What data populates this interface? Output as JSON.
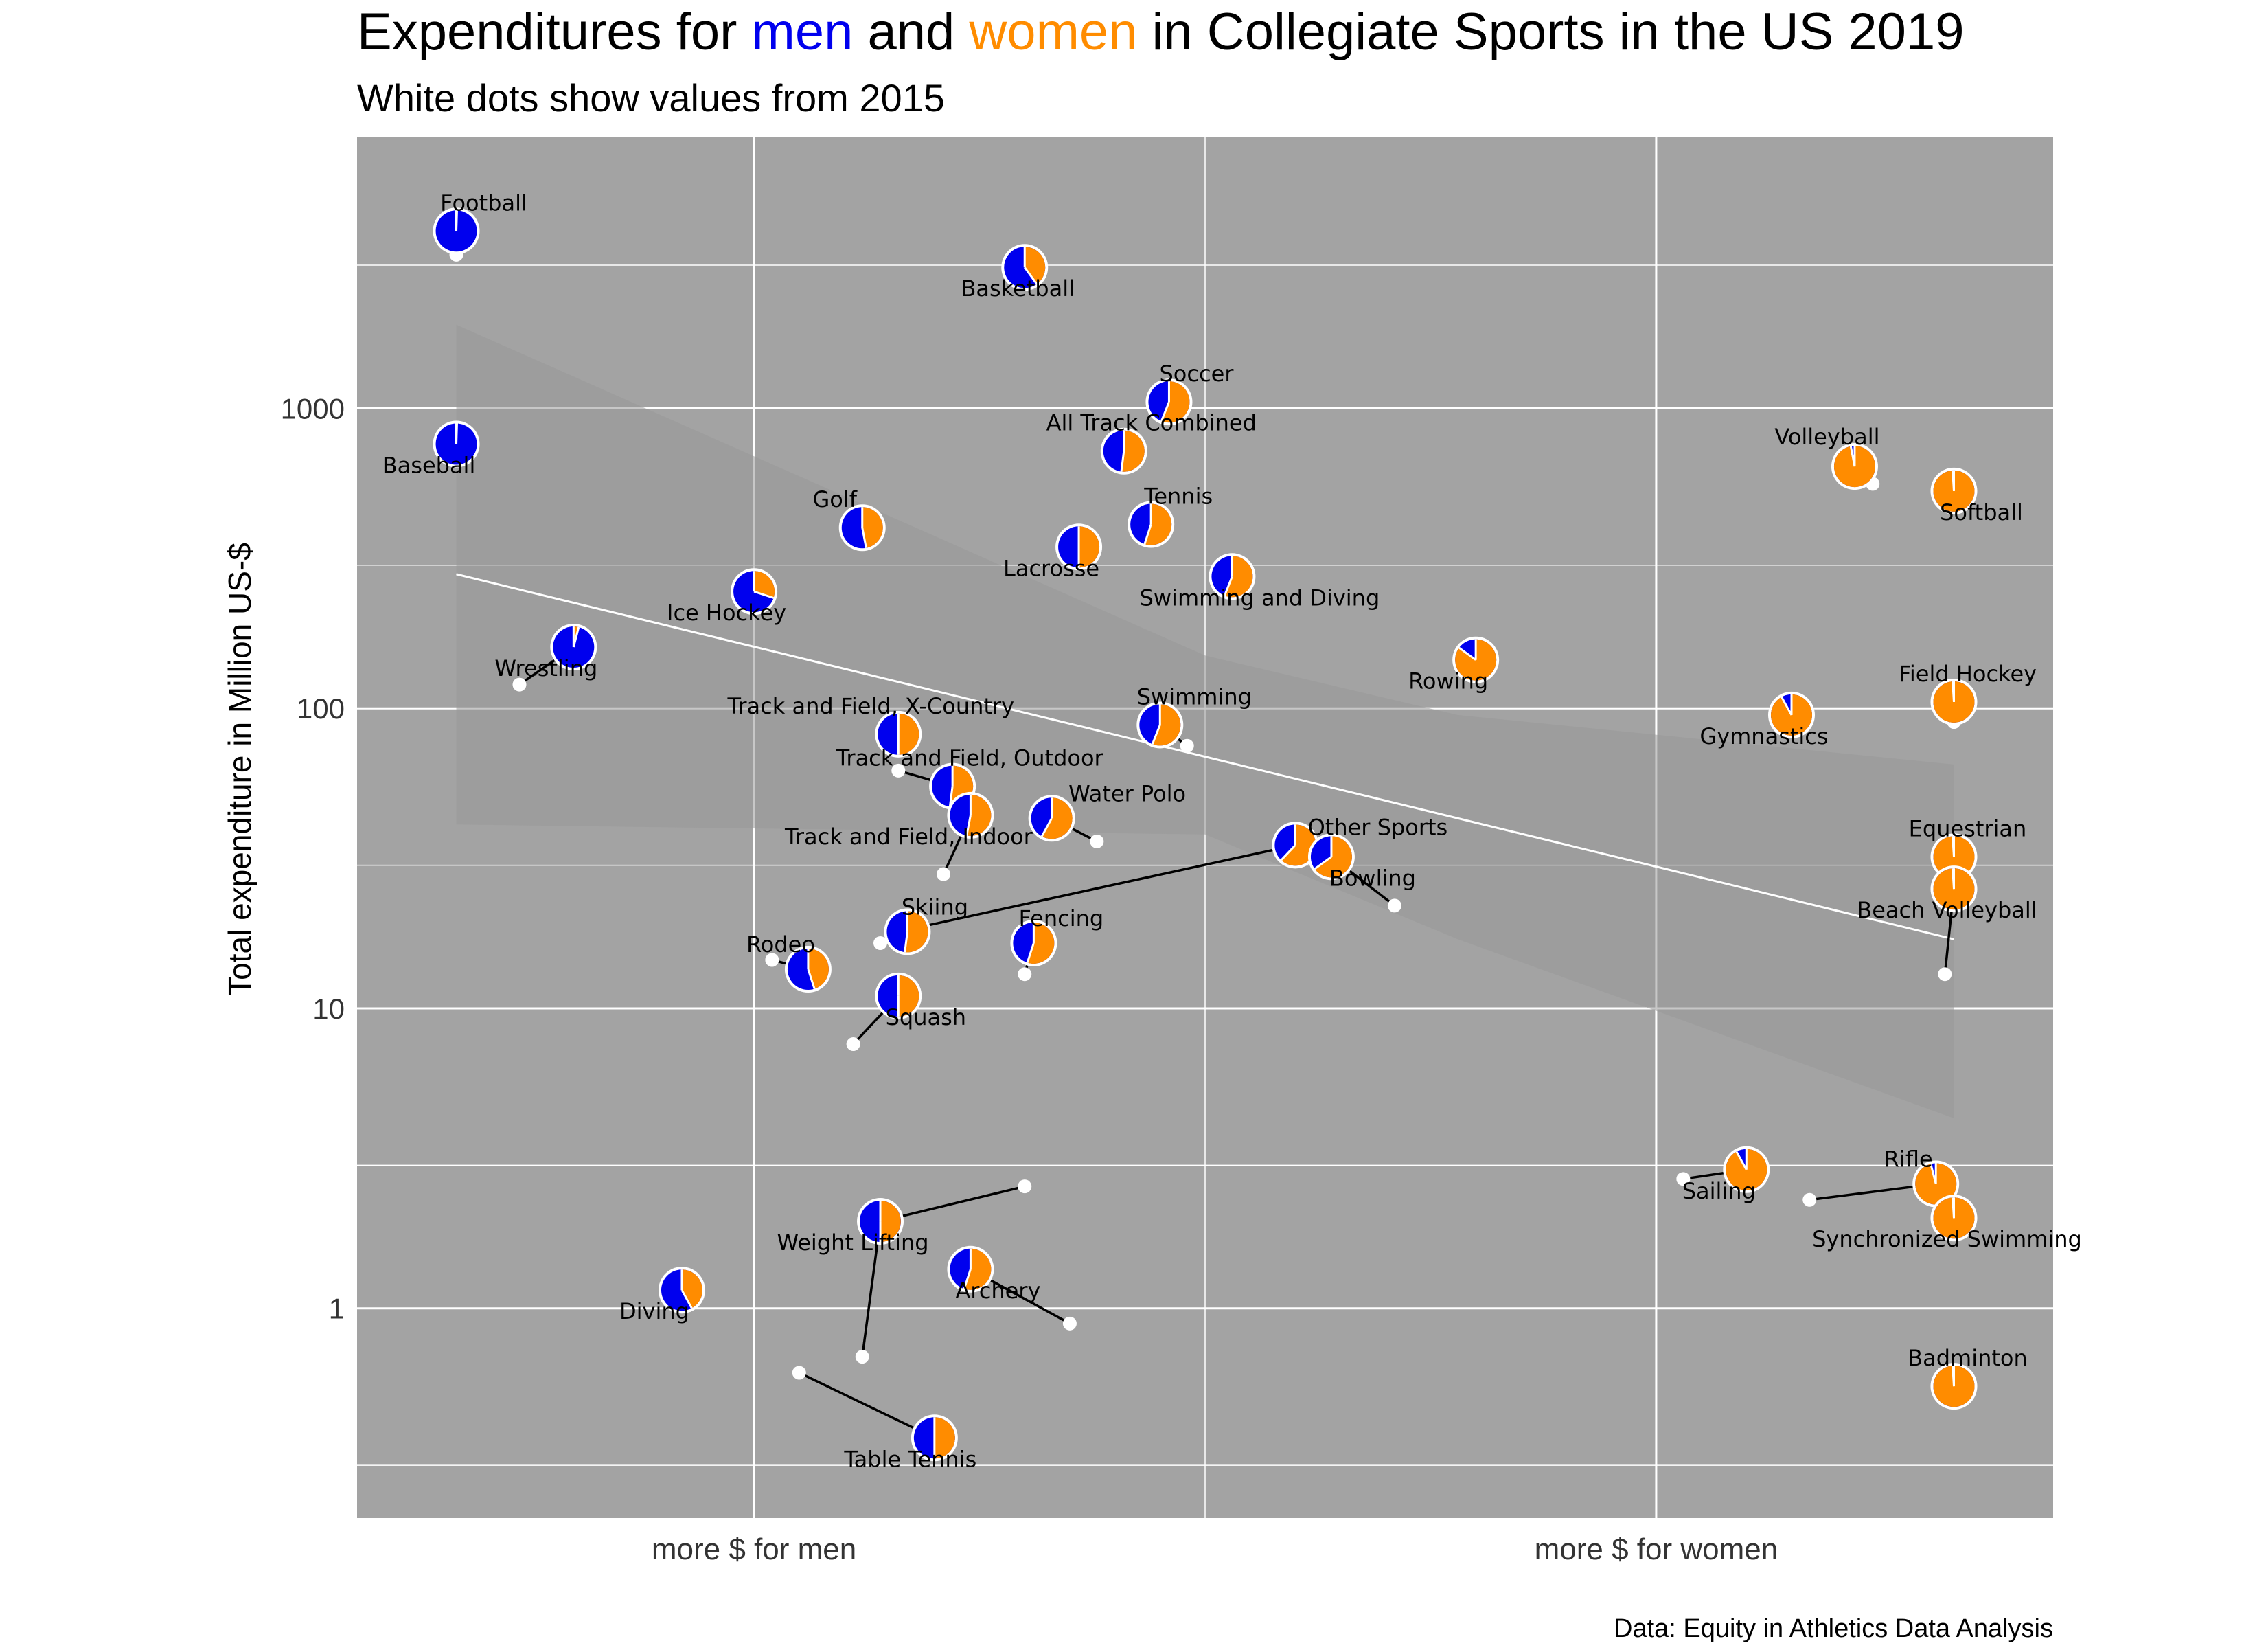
{
  "chart_data": {
    "type": "scatter",
    "title": {
      "prefix": "Expenditures for ",
      "men": "men",
      "middle": " and ",
      "women": "women",
      "suffix": " in Collegiate Sports in the US 2019"
    },
    "subtitle": "White dots show values from 2015",
    "ylabel": "Total expenditure in Million US-$",
    "y_scale": "log10",
    "ylim": [
      0.2,
      8000
    ],
    "y_ticks": [
      1,
      10,
      100,
      1000
    ],
    "y_minor_ticks": [
      0.3,
      3,
      30,
      300,
      3000
    ],
    "x_range": [
      -0.6,
      1.28
    ],
    "x_ticks": [
      {
        "x": -0.16,
        "label": "more $ for men"
      },
      {
        "x": 0.84,
        "label": "more $ for women"
      }
    ],
    "caption": "Data: Equity in Athletics Data Analysis",
    "colors": {
      "men": "#0000ee",
      "women": "#ff8c00",
      "panel": "#a3a3a3",
      "grid": "#ffffff",
      "band": "#999999"
    },
    "trend_line": {
      "x1": -0.49,
      "y1": 280,
      "x2": 1.17,
      "y2": 17
    },
    "confidence_band": {
      "upper": [
        [
          -0.49,
          1900
        ],
        [
          0.34,
          150
        ],
        [
          0.62,
          95
        ],
        [
          1.17,
          65
        ]
      ],
      "lower": [
        [
          1.17,
          4.3
        ],
        [
          0.62,
          17
        ],
        [
          0.34,
          38
        ],
        [
          -0.49,
          41
        ]
      ]
    },
    "grid": true,
    "legend": "none (colored words in title)",
    "points": [
      {
        "sport": "Football",
        "x": -0.49,
        "y": 3900,
        "women_share": 0.005,
        "x2015": -0.49,
        "y2015": 3250
      },
      {
        "sport": "Basketball",
        "x": 0.14,
        "y": 2950,
        "women_share": 0.4,
        "x2015": 0.14,
        "y2015": 2950
      },
      {
        "sport": "Baseball",
        "x": -0.49,
        "y": 760,
        "women_share": 0.005,
        "x2015": -0.49,
        "y2015": 760
      },
      {
        "sport": "Soccer",
        "x": 0.3,
        "y": 1050,
        "women_share": 0.56,
        "x2015": 0.3,
        "y2015": 1050
      },
      {
        "sport": "All Track Combined",
        "x": 0.25,
        "y": 720,
        "women_share": 0.52,
        "x2015": 0.25,
        "y2015": 720
      },
      {
        "sport": "Volleyball",
        "x": 1.06,
        "y": 640,
        "women_share": 0.97,
        "x2015": 1.08,
        "y2015": 560
      },
      {
        "sport": "Softball",
        "x": 1.17,
        "y": 530,
        "women_share": 0.99,
        "x2015": 1.17,
        "y2015": 530
      },
      {
        "sport": "Golf",
        "x": -0.04,
        "y": 400,
        "women_share": 0.47,
        "x2015": -0.04,
        "y2015": 390
      },
      {
        "sport": "Tennis",
        "x": 0.28,
        "y": 410,
        "women_share": 0.55,
        "x2015": 0.28,
        "y2015": 410
      },
      {
        "sport": "Lacrosse",
        "x": 0.2,
        "y": 345,
        "women_share": 0.5,
        "x2015": 0.2,
        "y2015": 345
      },
      {
        "sport": "Swimming and Diving",
        "x": 0.37,
        "y": 275,
        "women_share": 0.56,
        "x2015": 0.37,
        "y2015": 275
      },
      {
        "sport": "Ice Hockey",
        "x": -0.16,
        "y": 245,
        "women_share": 0.3,
        "x2015": -0.16,
        "y2015": 245
      },
      {
        "sport": "Wrestling",
        "x": -0.36,
        "y": 160,
        "women_share": 0.04,
        "x2015": -0.42,
        "y2015": 120
      },
      {
        "sport": "Rowing",
        "x": 0.64,
        "y": 145,
        "women_share": 0.85,
        "x2015": 0.64,
        "y2015": 145
      },
      {
        "sport": "Field Hockey",
        "x": 1.17,
        "y": 105,
        "women_share": 0.99,
        "x2015": 1.17,
        "y2015": 90
      },
      {
        "sport": "Gymnastics",
        "x": 0.99,
        "y": 95,
        "women_share": 0.92,
        "x2015": 0.99,
        "y2015": 95
      },
      {
        "sport": "Track and Field, X-Country",
        "x": 0.0,
        "y": 82,
        "women_share": 0.5,
        "x2015": 0.0,
        "y2015": 82
      },
      {
        "sport": "Swimming",
        "x": 0.29,
        "y": 88,
        "women_share": 0.56,
        "x2015": 0.32,
        "y2015": 75
      },
      {
        "sport": "Track and Field, Outdoor",
        "x": 0.06,
        "y": 55,
        "women_share": 0.52,
        "x2015": 0.0,
        "y2015": 62
      },
      {
        "sport": "Track and Field, Indoor",
        "x": 0.08,
        "y": 44,
        "women_share": 0.53,
        "x2015": 0.05,
        "y2015": 28
      },
      {
        "sport": "Water Polo",
        "x": 0.17,
        "y": 43,
        "women_share": 0.58,
        "x2015": 0.22,
        "y2015": 36
      },
      {
        "sport": "Other Sports",
        "x": 0.44,
        "y": 35,
        "women_share": 0.62,
        "x2015": 0.0,
        "y2015": 18
      },
      {
        "sport": "Bowling",
        "x": 0.48,
        "y": 32,
        "women_share": 0.65,
        "x2015": 0.55,
        "y2015": 22
      },
      {
        "sport": "Equestrian",
        "x": 1.17,
        "y": 32,
        "women_share": 0.99,
        "x2015": 1.17,
        "y2015": 32
      },
      {
        "sport": "Beach Volleyball",
        "x": 1.17,
        "y": 25,
        "women_share": 0.99,
        "x2015": 1.16,
        "y2015": 13
      },
      {
        "sport": "Skiing",
        "x": 0.01,
        "y": 18,
        "women_share": 0.52,
        "x2015": -0.02,
        "y2015": 16.5
      },
      {
        "sport": "Fencing",
        "x": 0.15,
        "y": 16.5,
        "women_share": 0.55,
        "x2015": 0.14,
        "y2015": 13
      },
      {
        "sport": "Rodeo",
        "x": -0.1,
        "y": 13.5,
        "women_share": 0.45,
        "x2015": -0.14,
        "y2015": 14.5
      },
      {
        "sport": "Squash",
        "x": 0.0,
        "y": 11,
        "women_share": 0.5,
        "x2015": -0.05,
        "y2015": 7.6
      },
      {
        "sport": "Sailing",
        "x": 0.94,
        "y": 2.9,
        "women_share": 0.92,
        "x2015": 0.87,
        "y2015": 2.7
      },
      {
        "sport": "Rifle",
        "x": 1.15,
        "y": 2.6,
        "women_share": 0.96,
        "x2015": 1.01,
        "y2015": 2.3
      },
      {
        "sport": "Synchronized Swimming",
        "x": 1.17,
        "y": 2.0,
        "women_share": 0.99,
        "x2015": 1.17,
        "y2015": 2.0
      },
      {
        "sport": "Weight Lifting",
        "x": -0.02,
        "y": 1.95,
        "women_share": 0.5,
        "x2015": 0.14,
        "y2015": 2.55
      },
      {
        "sport": "Weight Lifting",
        "x": -0.02,
        "y": 1.95,
        "women_share": 0.5,
        "x2015": -0.04,
        "y2015": 0.69
      },
      {
        "sport": "Diving",
        "x": -0.24,
        "y": 1.15,
        "women_share": 0.42,
        "x2015": -0.24,
        "y2015": 1.15
      },
      {
        "sport": "Archery",
        "x": 0.08,
        "y": 1.35,
        "women_share": 0.55,
        "x2015": 0.19,
        "y2015": 0.89
      },
      {
        "sport": "Table Tennis",
        "x": 0.04,
        "y": 0.37,
        "women_share": 0.5,
        "x2015": -0.11,
        "y2015": 0.61
      },
      {
        "sport": "Badminton",
        "x": 1.17,
        "y": 0.55,
        "women_share": 0.99,
        "x2015": 1.17,
        "y2015": 0.55
      }
    ]
  }
}
